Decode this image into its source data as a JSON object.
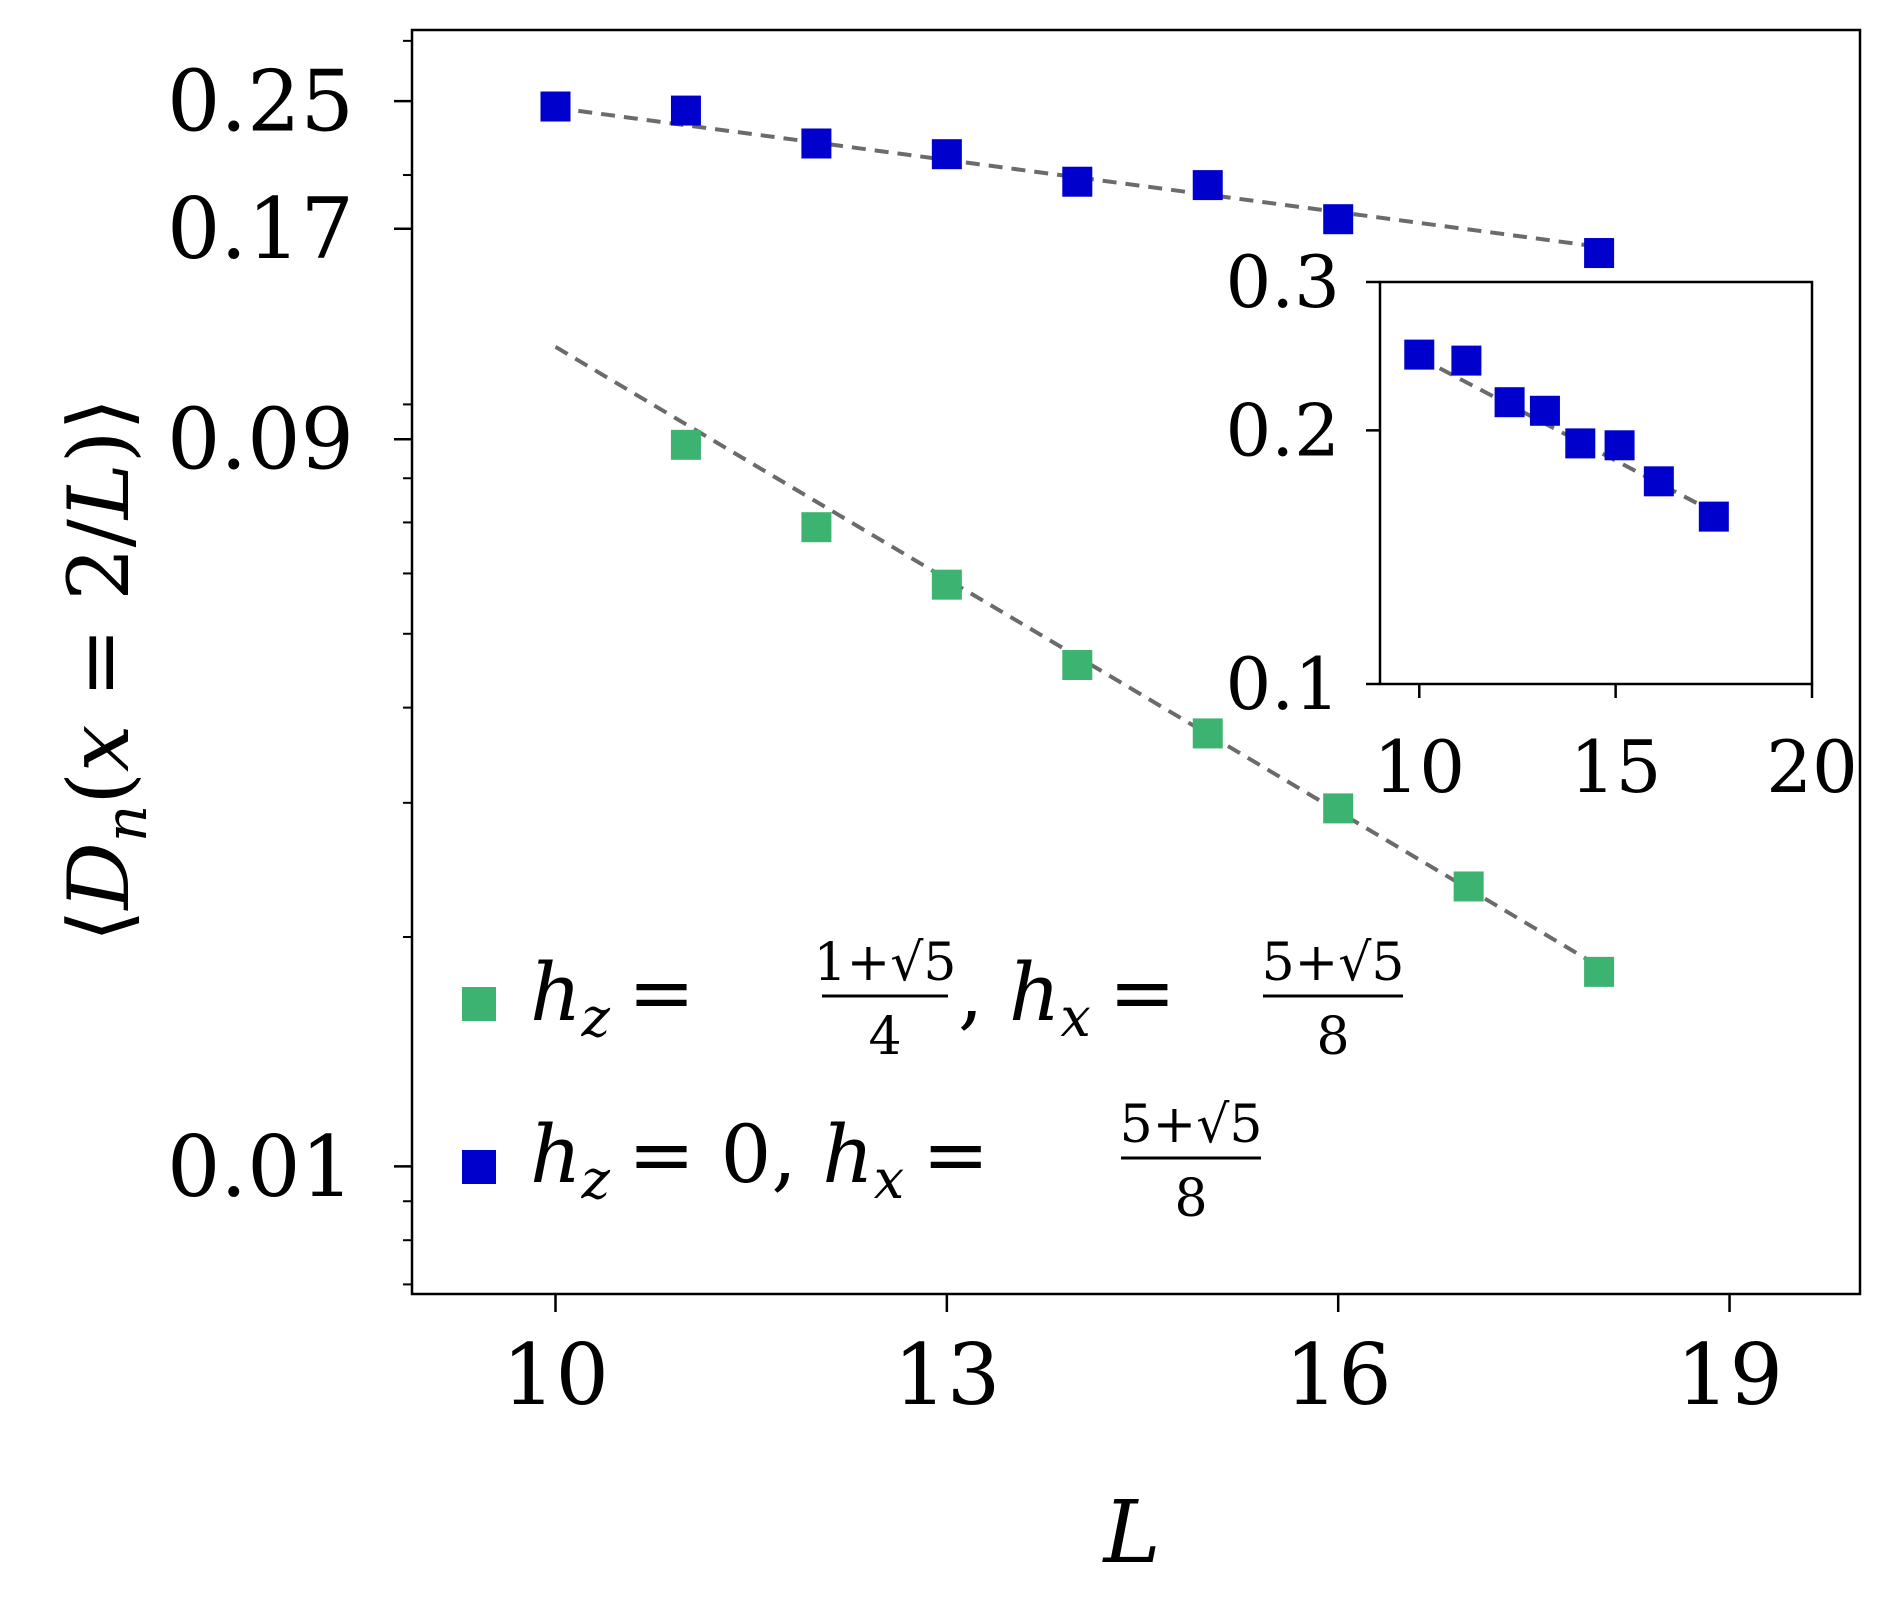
{
  "chart_data": [
    {
      "type": "scatter",
      "title": "",
      "xlabel": "L",
      "ylabel": "⟨D_n(x = 2/L)⟩",
      "yscale": "log",
      "xlim": [
        8.9,
        20.0
      ],
      "ylim": [
        0.0068,
        0.31
      ],
      "x_ticks": [
        10,
        13,
        16,
        19
      ],
      "x_tick_labels": [
        "10",
        "13",
        "16",
        "19"
      ],
      "y_ticks": [
        0.25,
        0.17,
        0.09,
        0.01
      ],
      "y_tick_labels": [
        "0.25",
        "0.17",
        "0.09",
        "0.01"
      ],
      "legend_position": "lower-left",
      "series": [
        {
          "legend_math": {
            "lhs_base": "h",
            "lhs_sub": "z",
            "eq": "=",
            "frac1_num": "1+√5",
            "frac1_den": "4",
            "sep": ",",
            "rhs_base": "h",
            "rhs_sub": "x",
            "frac2_num": "5+√5",
            "frac2_den": "8"
          },
          "color": "#3cb371",
          "marker": "square",
          "x": [
            11,
            12,
            13,
            14,
            15,
            16,
            17,
            18
          ],
          "y": [
            0.0885,
            0.069,
            0.058,
            0.0455,
            0.037,
            0.0295,
            0.0233,
            0.018
          ],
          "fit_line": {
            "color": "#6b6b6b",
            "style": "dashed",
            "x": [
              10,
              18
            ],
            "y": [
              0.119,
              0.0183
            ]
          }
        },
        {
          "legend_math": {
            "lhs_base": "h",
            "lhs_sub": "z",
            "eq": "=",
            "value": "0,",
            "rhs_base": "h",
            "rhs_sub": "x",
            "frac2_num": "5+√5",
            "frac2_den": "8"
          },
          "color": "#0000cd",
          "marker": "square",
          "x": [
            10,
            11,
            12,
            13,
            14,
            15,
            16,
            18
          ],
          "y": [
            0.246,
            0.243,
            0.22,
            0.213,
            0.196,
            0.194,
            0.175,
            0.158
          ],
          "fit_line": {
            "color": "#6b6b6b",
            "style": "dashed",
            "x": [
              10,
              18
            ],
            "y": [
              0.245,
              0.161
            ]
          }
        }
      ]
    },
    {
      "type": "scatter",
      "title": "",
      "xlabel": "",
      "ylabel": "",
      "yscale": "log",
      "xlim": [
        9,
        20
      ],
      "ylim": [
        0.1,
        0.3
      ],
      "x_ticks": [
        10,
        15,
        20
      ],
      "x_tick_labels": [
        "10",
        "15",
        "20"
      ],
      "y_ticks": [
        0.3,
        0.2,
        0.1
      ],
      "y_tick_labels": [
        "0.3",
        "0.2",
        "0.1"
      ],
      "series": [
        {
          "color": "#0000cd",
          "marker": "square",
          "x": [
            10,
            11.2,
            12.3,
            13.2,
            14.1,
            15.1,
            16.1,
            17.5
          ],
          "y": [
            0.246,
            0.242,
            0.216,
            0.211,
            0.193,
            0.192,
            0.174,
            0.158
          ],
          "fit_line": {
            "color": "#6b6b6b",
            "style": "dashed",
            "x": [
              10,
              17.5
            ],
            "y": [
              0.244,
              0.16
            ]
          }
        }
      ]
    }
  ]
}
